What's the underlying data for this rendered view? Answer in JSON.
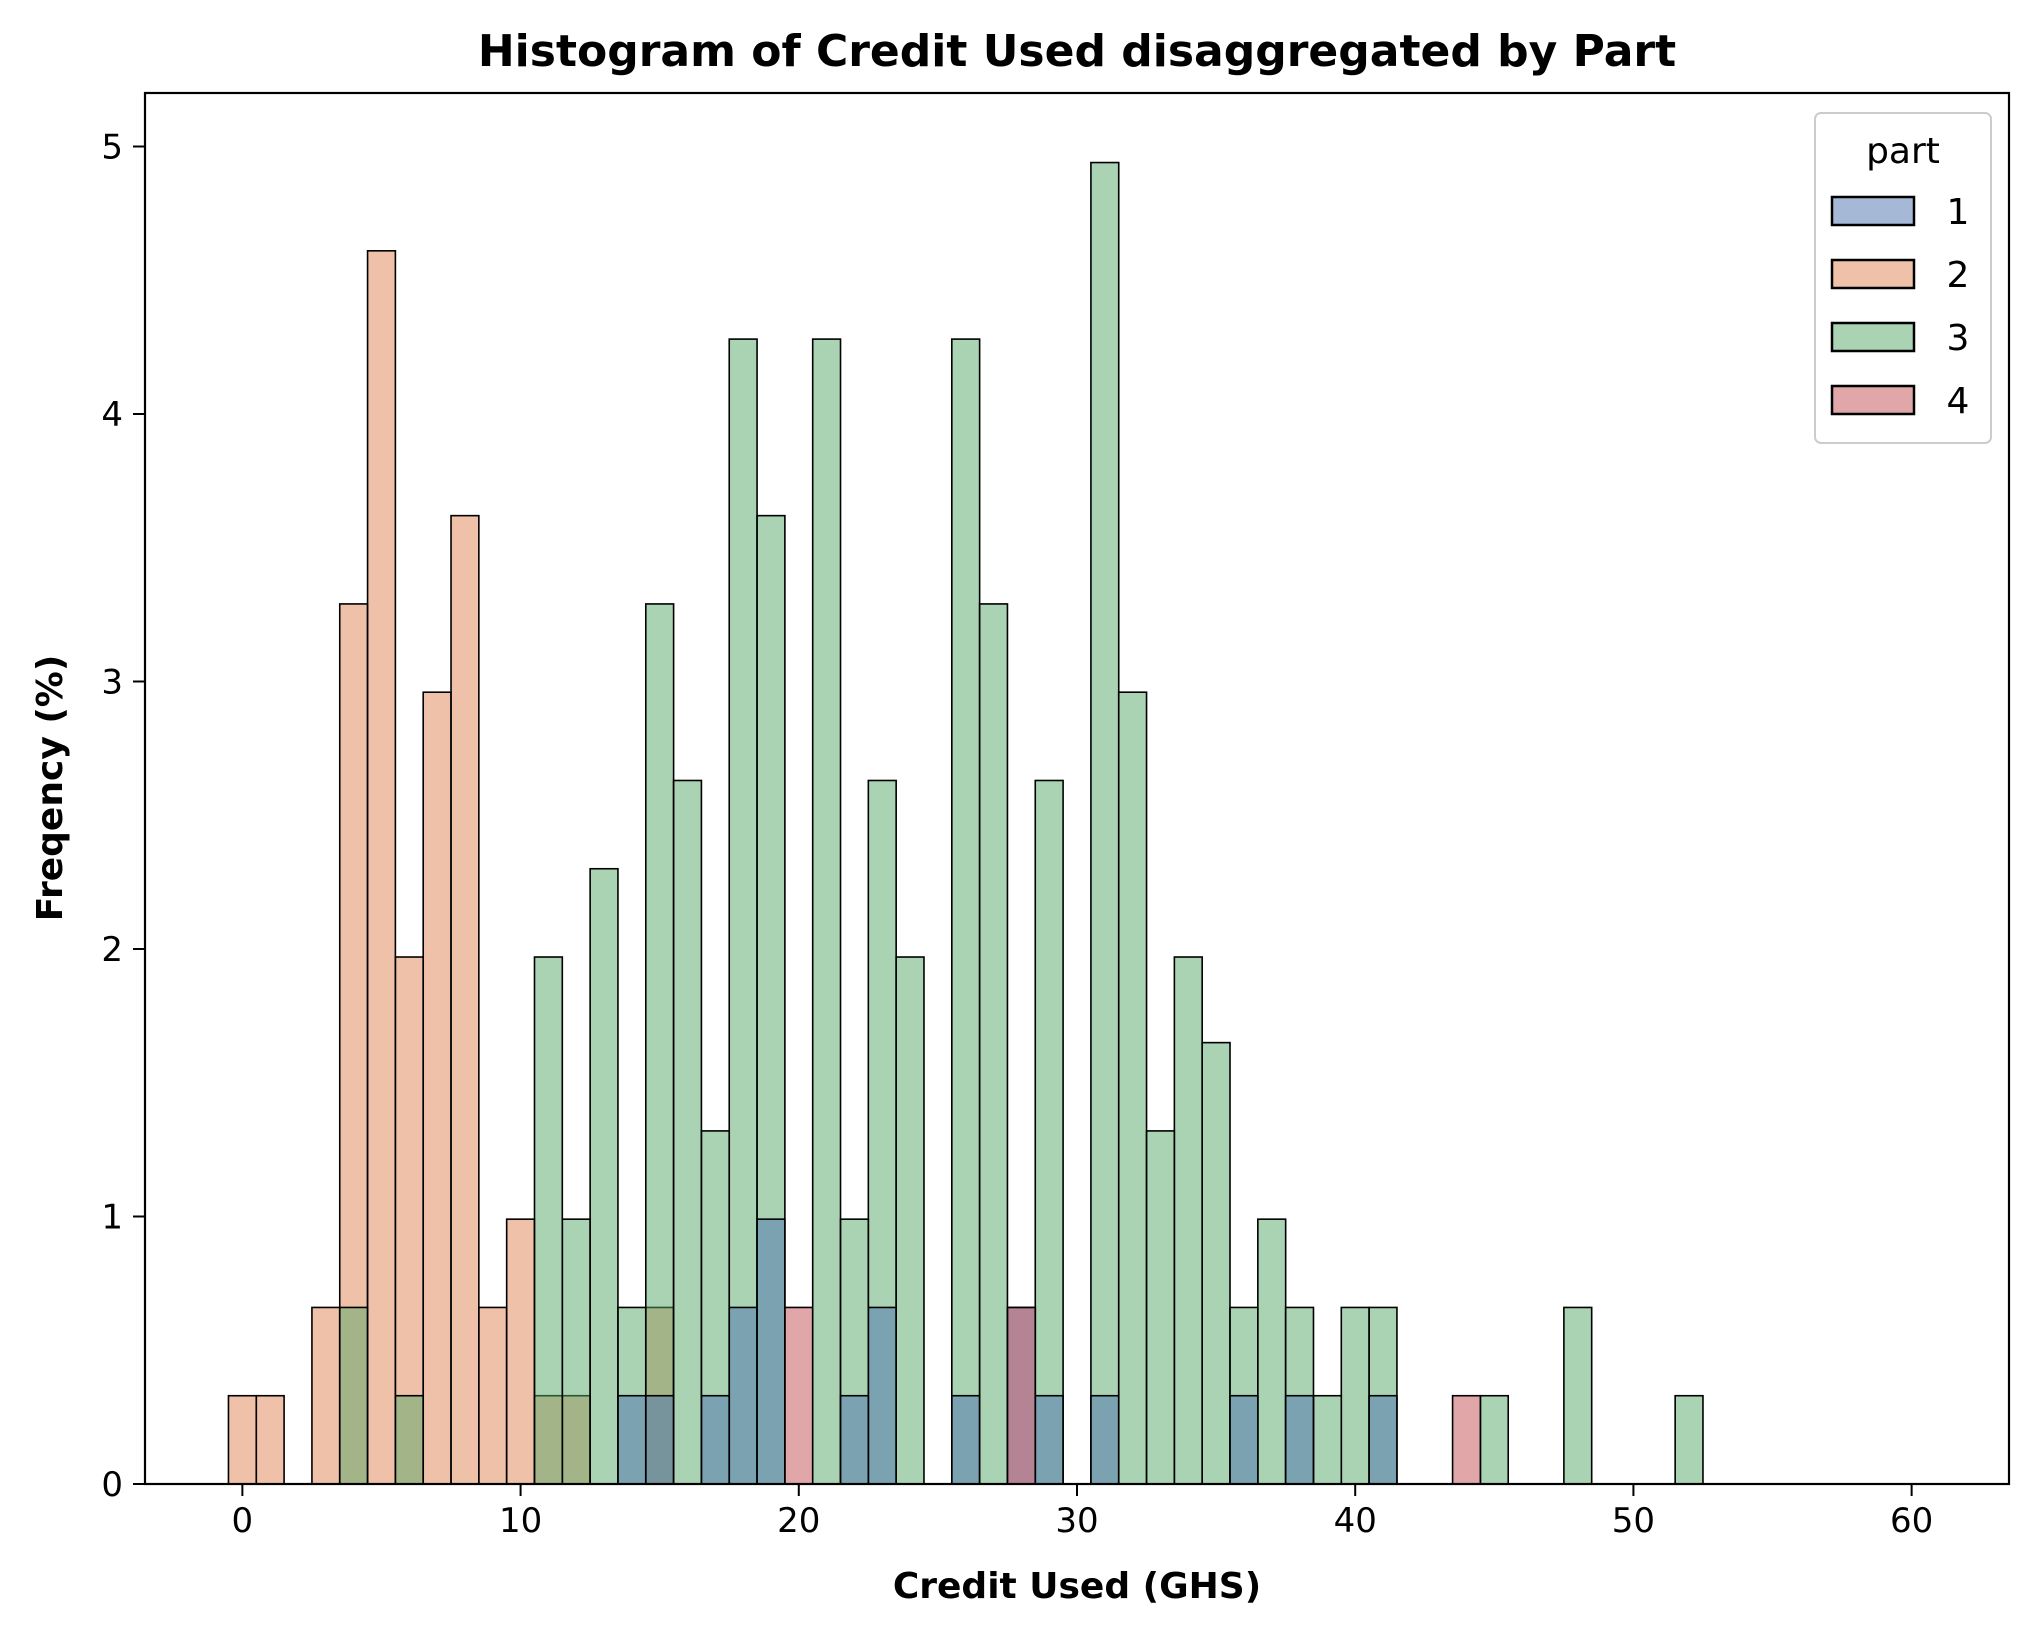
{
  "chart_data": {
    "type": "histogram",
    "title": "Histogram of Credit Used disaggregated by Part",
    "xlabel": "Credit Used (GHS)",
    "ylabel": "Freqency (%)",
    "xlim": [
      -3.5,
      63.5
    ],
    "ylim": [
      0,
      5.2
    ],
    "xticks": [
      0,
      10,
      20,
      30,
      40,
      50,
      60
    ],
    "yticks": [
      0,
      1,
      2,
      3,
      4,
      5
    ],
    "bin_start": -0.5,
    "bin_width": 1.0,
    "grid": false,
    "legend": {
      "title": "part",
      "position": "top-right"
    },
    "series": [
      {
        "name": "2",
        "color": "#dd8452",
        "values": [
          0.33,
          0.33,
          0,
          0.66,
          3.29,
          4.61,
          1.97,
          2.96,
          3.62,
          0.66,
          0.99,
          0.33,
          0.33,
          0,
          0,
          0.66,
          0,
          0,
          0,
          0,
          0,
          0,
          0,
          0,
          0,
          0,
          0,
          0,
          0,
          0,
          0,
          0,
          0,
          0,
          0,
          0,
          0,
          0,
          0,
          0,
          0,
          0,
          0,
          0,
          0,
          0,
          0,
          0,
          0,
          0,
          0,
          0,
          0,
          0,
          0,
          0,
          0,
          0,
          0,
          0,
          0,
          0
        ]
      },
      {
        "name": "3",
        "color": "#55a868",
        "values": [
          0,
          0,
          0,
          0,
          0.66,
          0,
          0.33,
          0,
          0,
          0,
          0,
          1.97,
          0.99,
          2.3,
          0.66,
          3.29,
          2.63,
          1.32,
          4.28,
          3.62,
          0,
          4.28,
          0.99,
          2.63,
          1.97,
          0,
          4.28,
          3.29,
          0,
          2.63,
          0,
          4.94,
          2.96,
          1.32,
          1.97,
          1.65,
          0.66,
          0.99,
          0.66,
          0.33,
          0.66,
          0.66,
          0,
          0,
          0,
          0.33,
          0,
          0,
          0.66,
          0,
          0,
          0,
          0.33,
          0,
          0,
          0,
          0,
          0,
          0,
          0,
          0,
          0
        ]
      },
      {
        "name": "1",
        "color": "#4c72b0",
        "values": [
          0,
          0,
          0,
          0,
          0,
          0,
          0,
          0,
          0,
          0,
          0,
          0,
          0,
          0,
          0.33,
          0.33,
          0,
          0.33,
          0.66,
          0.99,
          0,
          0,
          0.33,
          0.66,
          0,
          0,
          0.33,
          0,
          0.66,
          0.33,
          0,
          0.33,
          0,
          0,
          0,
          0,
          0.33,
          0,
          0.33,
          0,
          0,
          0.33,
          0,
          0,
          0,
          0,
          0,
          0,
          0,
          0,
          0,
          0,
          0,
          0,
          0,
          0,
          0,
          0,
          0,
          0,
          0,
          0
        ]
      },
      {
        "name": "4",
        "color": "#c44e52",
        "values": [
          0,
          0,
          0,
          0,
          0,
          0,
          0,
          0,
          0,
          0,
          0,
          0,
          0,
          0,
          0,
          0,
          0,
          0,
          0,
          0,
          0.66,
          0,
          0,
          0,
          0,
          0,
          0,
          0,
          0.66,
          0,
          0,
          0,
          0,
          0,
          0,
          0,
          0,
          0,
          0,
          0,
          0,
          0,
          0,
          0,
          0.33,
          0,
          0,
          0,
          0,
          0,
          0,
          0,
          0,
          0,
          0,
          0,
          0,
          0,
          0,
          0,
          0,
          0
        ]
      }
    ],
    "legend_order": [
      "1",
      "2",
      "3",
      "4"
    ]
  }
}
